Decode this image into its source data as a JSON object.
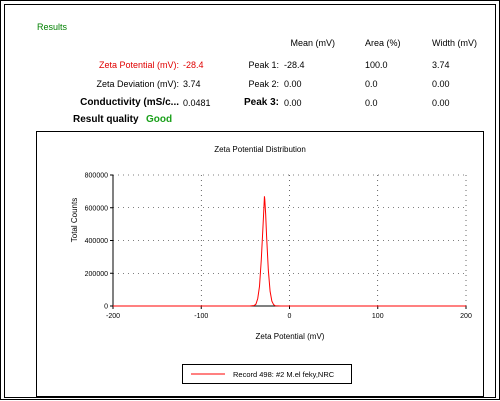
{
  "results": {
    "section_title": "Results",
    "table_headers": [
      "Mean (mV)",
      "Area (%)",
      "Width (mV)"
    ],
    "summary": [
      {
        "label": "Zeta Potential (mV):",
        "value": "-28.4",
        "style": "red"
      },
      {
        "label": "Zeta Deviation (mV):",
        "value": "3.74",
        "style": "normal"
      },
      {
        "label": "Conductivity (mS/c...",
        "value": "0.0481",
        "style": "bold"
      }
    ],
    "peaks": [
      {
        "label": "Peak 1:",
        "mean": "-28.4",
        "area": "100.0",
        "width": "3.74",
        "style": "normal"
      },
      {
        "label": "Peak 2:",
        "mean": "0.00",
        "area": "0.0",
        "width": "0.00",
        "style": "normal"
      },
      {
        "label": "Peak 3:",
        "mean": "0.00",
        "area": "0.0",
        "width": "0.00",
        "style": "bold"
      }
    ],
    "quality_label": "Result quality",
    "quality_value": "Good"
  },
  "colors": {
    "accent_red": "#e00000",
    "good_green": "#1aa01a",
    "title_green": "#008000",
    "series_red": "#ff0000"
  },
  "chart_data": {
    "type": "line",
    "title": "Zeta Potential Distribution",
    "xlabel": "Zeta Potential (mV)",
    "ylabel": "Total Counts",
    "xlim": [
      -200,
      200
    ],
    "ylim": [
      0,
      800000
    ],
    "xticks": [
      -200,
      -100,
      0,
      100,
      200
    ],
    "yticks": [
      0,
      200000,
      400000,
      600000,
      800000
    ],
    "grid": "dotted",
    "legend_position": "bottom-center",
    "series": [
      {
        "name": "Record 498: #2  M.el feky,NRC",
        "color": "#ff0000",
        "x": [
          -200,
          -60,
          -45,
          -40,
          -38,
          -36,
          -34,
          -32,
          -30,
          -29,
          -28.4,
          -28,
          -27,
          -26,
          -24,
          -22,
          -20,
          -18,
          -16,
          -10,
          0,
          200
        ],
        "y": [
          0,
          0,
          0,
          3000,
          12000,
          45000,
          120000,
          280000,
          490000,
          600000,
          670000,
          650000,
          560000,
          430000,
          220000,
          90000,
          30000,
          8000,
          1500,
          0,
          0,
          0
        ]
      }
    ]
  }
}
